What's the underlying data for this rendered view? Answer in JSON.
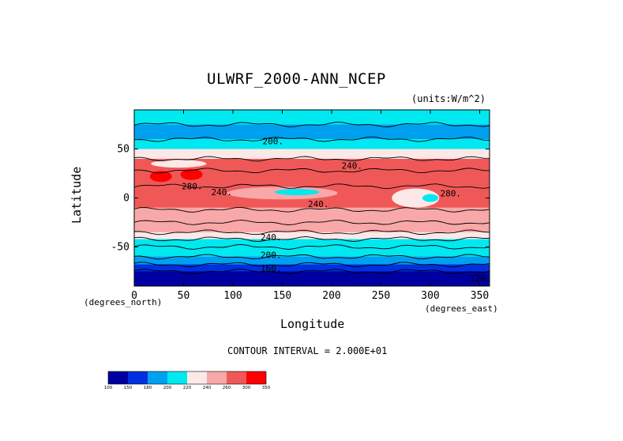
{
  "chart_data": {
    "type": "contour",
    "title": "ULWRF_2000-ANN_NCEP",
    "units_label": "(units:W/m^2)",
    "xlabel": "Longitude",
    "ylabel": "Latitude",
    "x_units_note": "(degrees_east)",
    "y_units_note": "(degrees_north)",
    "xlim": [
      0,
      360
    ],
    "ylim": [
      -90,
      90
    ],
    "x_ticks": [
      0,
      50,
      100,
      150,
      200,
      250,
      300,
      350
    ],
    "y_ticks": [
      50,
      0,
      -50
    ],
    "contour_interval_text": "CONTOUR INTERVAL = 2.000E+01",
    "contour_labels": [
      "200.",
      "240.",
      "280.",
      "240.",
      "240.",
      "280.",
      "240.",
      "200.",
      "160.",
      "120."
    ],
    "colorbar": {
      "levels": [
        "100",
        "150",
        "180",
        "200",
        "220",
        "240",
        "260",
        "300",
        "350"
      ],
      "colors": [
        "#0000a0",
        "#0030e0",
        "#00a0f0",
        "#00e8f0",
        "#fde8e8",
        "#f8a8a8",
        "#f05858",
        "#ff0000"
      ]
    },
    "bands": [
      {
        "lat_range": [
          60,
          90
        ],
        "value_range": [
          200,
          220
        ],
        "color": "#00a0f0"
      },
      {
        "lat_range": [
          40,
          60
        ],
        "value_range": [
          220,
          240
        ],
        "color": "#00e8f0"
      },
      {
        "lat_range": [
          -10,
          40
        ],
        "value_range": [
          240,
          300
        ],
        "color": "#f05858"
      },
      {
        "lat_range": [
          -40,
          -10
        ],
        "value_range": [
          240,
          260
        ],
        "color": "#f8a8a8"
      },
      {
        "lat_range": [
          -60,
          -40
        ],
        "value_range": [
          200,
          240
        ],
        "color": "#00e8f0"
      },
      {
        "lat_range": [
          -90,
          -60
        ],
        "value_range": [
          100,
          200
        ],
        "color": "#0000a0"
      }
    ]
  }
}
